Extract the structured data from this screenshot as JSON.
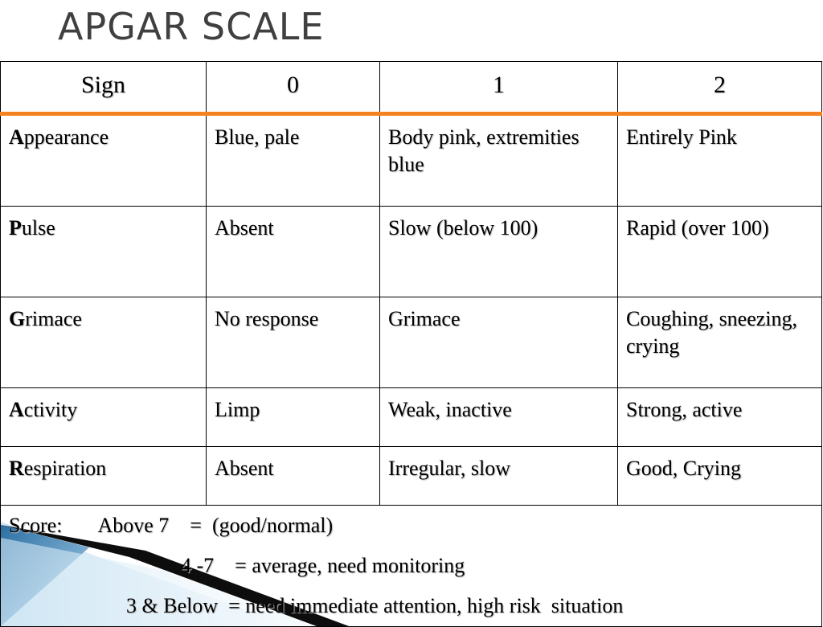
{
  "title": "APGAR SCALE",
  "table": {
    "headers": [
      "Sign",
      "0",
      "1",
      "2"
    ],
    "rows": [
      {
        "initial": "A",
        "rest": "ppearance",
        "c0": "Blue, pale",
        "c1": "Body pink, extremities blue",
        "c2": "Entirely Pink"
      },
      {
        "initial": "P",
        "rest": "ulse",
        "c0": "Absent",
        "c1": "Slow (below 100)",
        "c2": "Rapid (over 100)"
      },
      {
        "initial": "G",
        "rest": "rimace",
        "c0": "No response",
        "c1": "Grimace",
        "c2": "Coughing, sneezing, crying"
      },
      {
        "initial": "A",
        "rest": "ctivity",
        "c0": "Limp",
        "c1": "Weak, inactive",
        "c2": "Strong, active"
      },
      {
        "initial": "R",
        "rest": "espiration",
        "c0": "Absent",
        "c1": "Irregular, slow",
        "c2": "Good, Crying"
      }
    ]
  },
  "score": {
    "line1": "Score:       Above 7    =  (good/normal)",
    "line2": "4 -7    = average, need monitoring",
    "line3": "3 & Below  = need immediate attention, high risk  situation"
  },
  "colors": {
    "header_rule": "#f58220",
    "title": "#404040",
    "decoration_blue": "#3a86b8"
  }
}
